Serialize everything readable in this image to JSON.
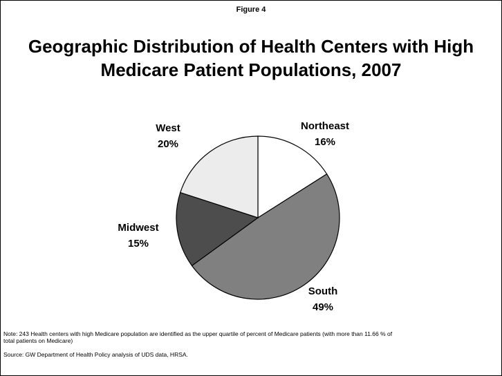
{
  "chart_data": {
    "type": "pie",
    "figure_label": "Figure 4",
    "title": "Geographic Distribution of Health Centers with High Medicare Patient Populations, 2007",
    "categories": [
      "Northeast",
      "South",
      "Midwest",
      "West"
    ],
    "values": [
      16,
      49,
      15,
      20
    ],
    "value_labels": [
      "16%",
      "49%",
      "15%",
      "20%"
    ],
    "colors": [
      "#ffffff",
      "#808080",
      "#4d4d4d",
      "#ececec"
    ],
    "note": "Note: 243 Health centers with high Medicare population are identified as the upper quartile of percent of Medicare patients (with more than 11.66 % of total patients on Medicare)",
    "source": "Source: GW Department of Health Policy analysis of UDS data, HRSA."
  }
}
